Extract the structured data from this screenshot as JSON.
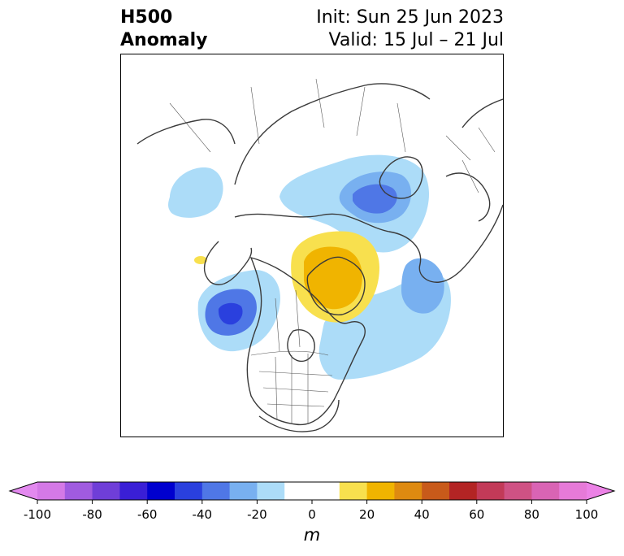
{
  "title": {
    "left_line1": "H500",
    "left_line2": "Anomaly",
    "right_line1": "Init: Sun 25 Jun 2023",
    "right_line2": "Valid: 15 Jul – 21 Jul"
  },
  "map": {
    "projection": "north-polar-stereographic",
    "field": "500 hPa geopotential height anomaly",
    "anomalies": [
      {
        "region": "Northwest Siberia / Kara Sea",
        "sign": "negative",
        "peak_m": -40
      },
      {
        "region": "Greenland / Baffin Bay",
        "sign": "positive",
        "peak_m": 25
      },
      {
        "region": "Gulf of Alaska",
        "sign": "negative",
        "peak_m": -40
      },
      {
        "region": "Northeast Atlantic",
        "sign": "negative",
        "peak_m": -30
      },
      {
        "region": "Northeast North America / Western Atlantic",
        "sign": "negative",
        "peak_m": -15
      },
      {
        "region": "Chukchi / East Siberia",
        "sign": "negative",
        "peak_m": -15
      },
      {
        "region": "Western Europe",
        "sign": "negative",
        "peak_m": -15
      }
    ]
  },
  "colorbar": {
    "unit": "m",
    "extend": "both",
    "min": -100,
    "max": 100,
    "step": 10,
    "ticks": [
      "-100",
      "-80",
      "-60",
      "-40",
      "-20",
      "0",
      "20",
      "40",
      "60",
      "80",
      "100"
    ],
    "colors": [
      "#d479e6",
      "#a05be0",
      "#6f3ed8",
      "#3a1fd6",
      "#0000cf",
      "#2a40de",
      "#4f77e6",
      "#78b0f0",
      "#acdcf8",
      "#ffffff",
      "#ffffff",
      "#f8e04e",
      "#f0b400",
      "#de8a10",
      "#c85a1a",
      "#b32424",
      "#c23a58",
      "#cf5284",
      "#d964b4",
      "#e67ad8"
    ],
    "under_color": "#e389ef",
    "over_color": "#ec82e6"
  }
}
